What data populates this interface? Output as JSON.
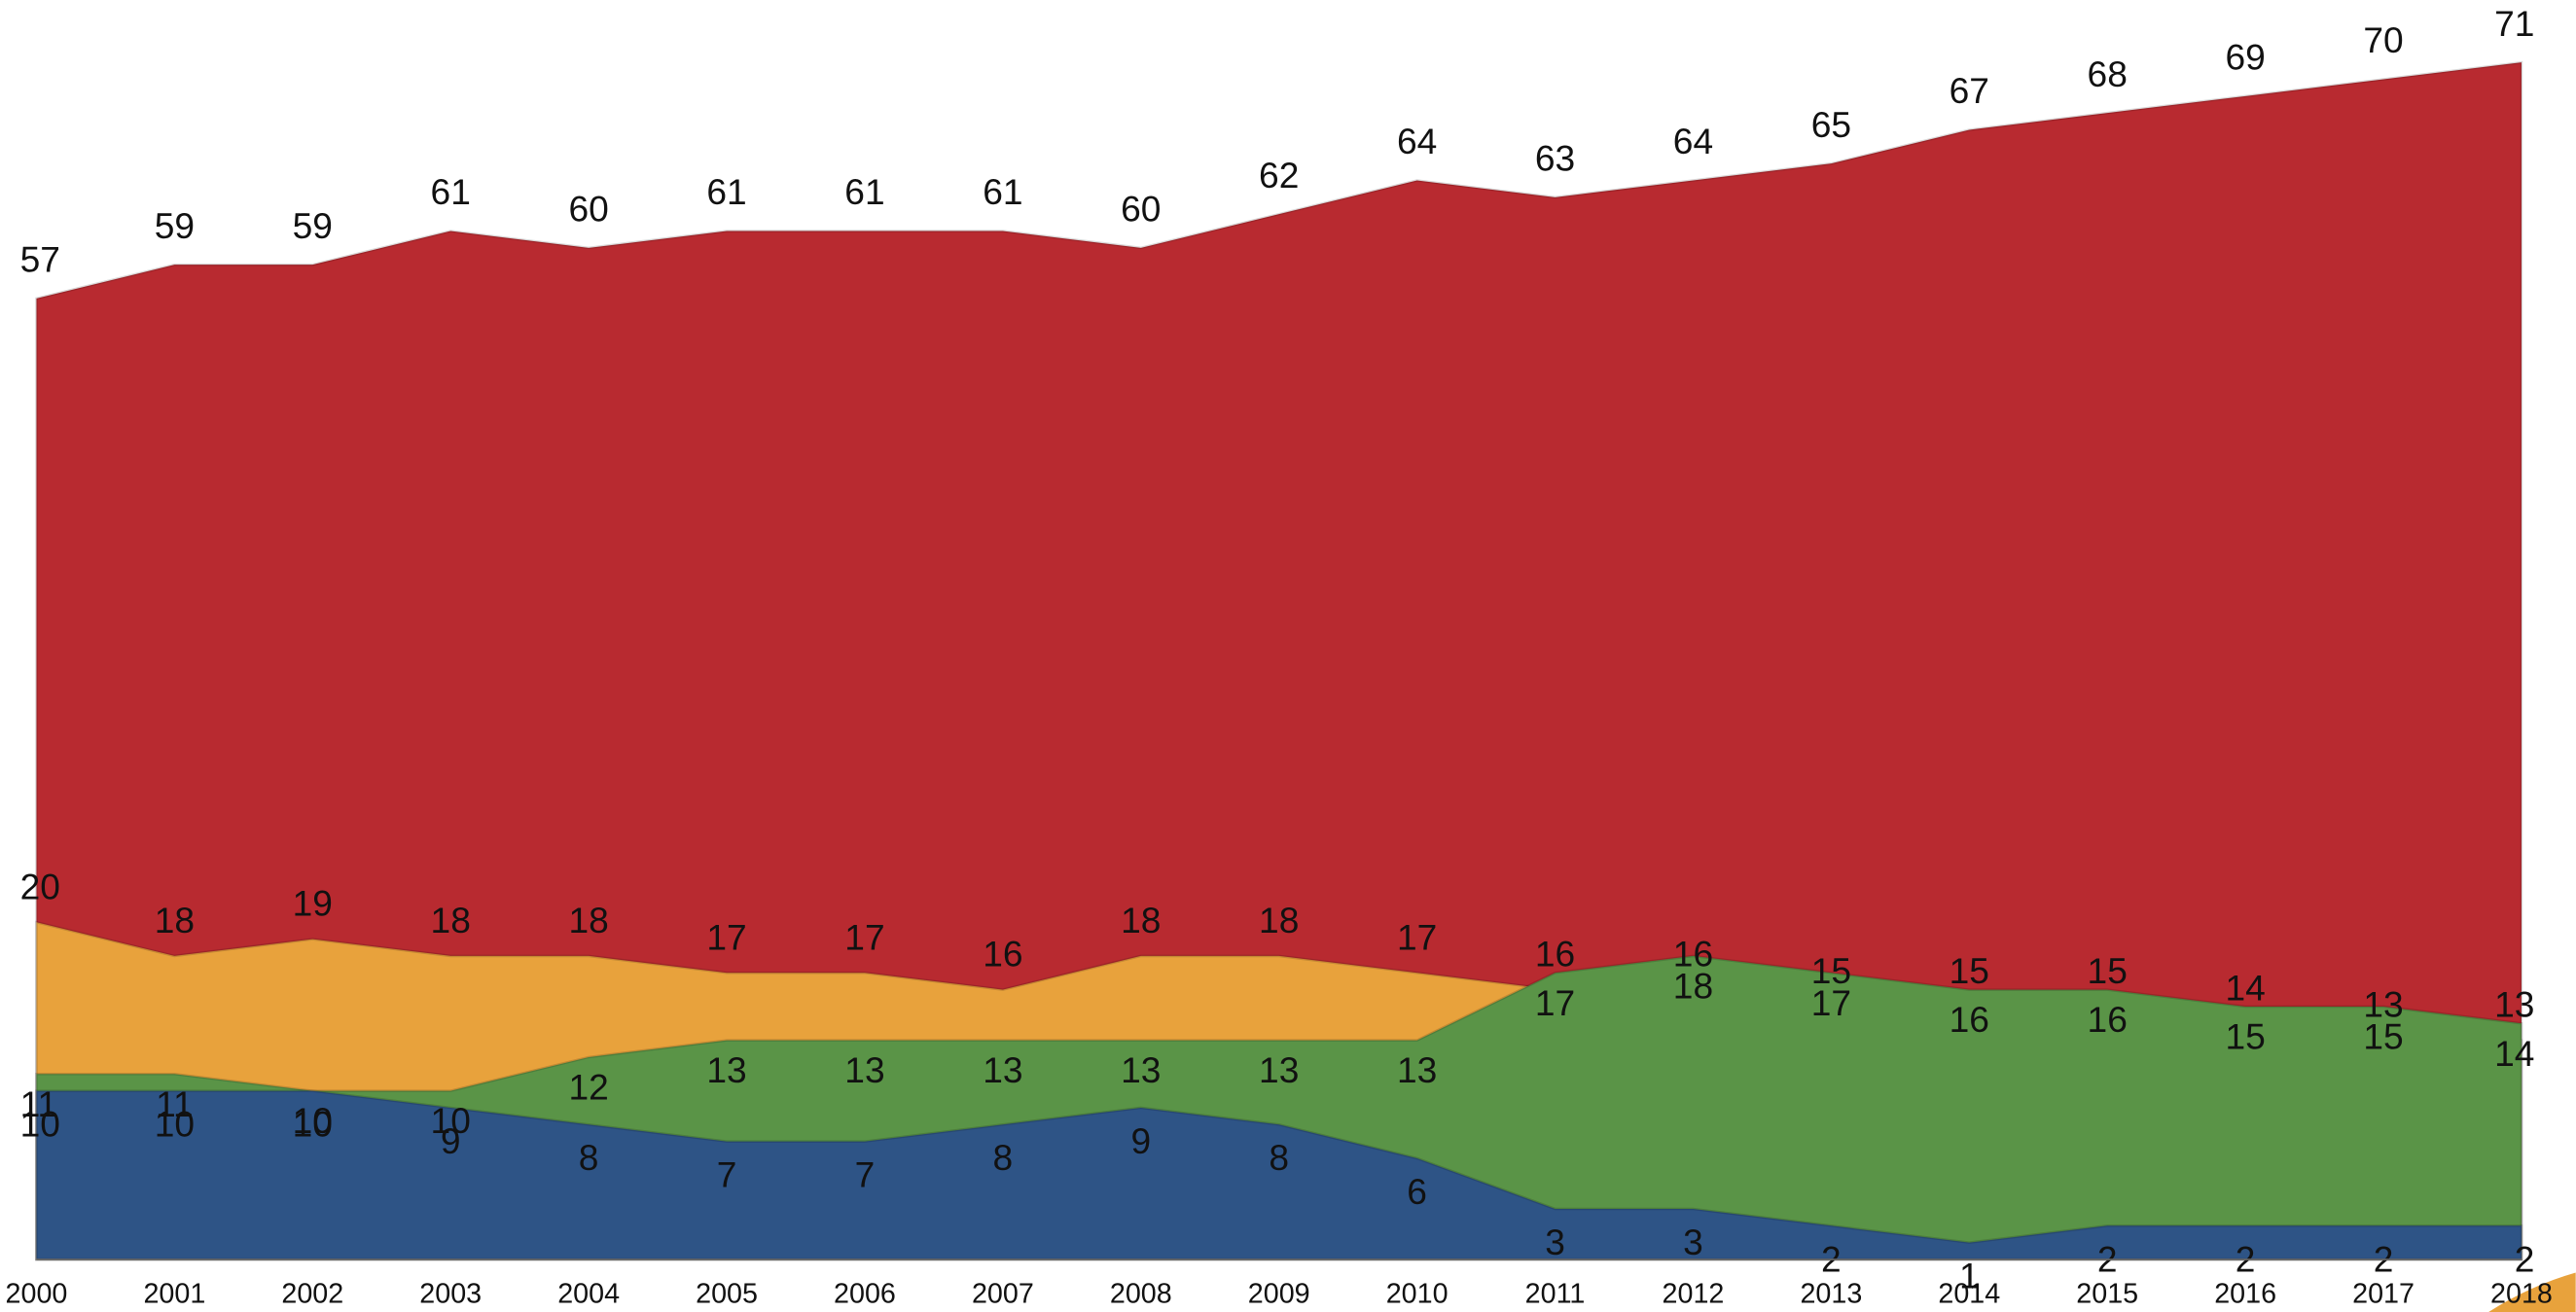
{
  "chart_data": {
    "type": "area",
    "x": [
      "2000",
      "2001",
      "2002",
      "2003",
      "2004",
      "2005",
      "2006",
      "2007",
      "2008",
      "2009",
      "2010",
      "2011",
      "2012",
      "2013",
      "2014",
      "2015",
      "2016",
      "2017",
      "2018"
    ],
    "series": [
      {
        "color": "#b82a30",
        "values": [
          57,
          59,
          59,
          61,
          60,
          61,
          61,
          61,
          60,
          62,
          64,
          63,
          64,
          65,
          67,
          68,
          69,
          70,
          71
        ]
      },
      {
        "color": "#e8a23c",
        "values": [
          20,
          18,
          19,
          18,
          18,
          17,
          17,
          16,
          18,
          18,
          17,
          16,
          16,
          15,
          15,
          15,
          14,
          13,
          13
        ]
      },
      {
        "color": "#5a9447",
        "values": [
          11,
          11,
          10,
          10,
          12,
          13,
          13,
          13,
          13,
          13,
          13,
          17,
          18,
          17,
          16,
          16,
          15,
          15,
          14
        ]
      },
      {
        "color": "#2e5486",
        "values": [
          10,
          10,
          10,
          9,
          8,
          7,
          7,
          8,
          9,
          8,
          6,
          3,
          3,
          2,
          1,
          2,
          2,
          2,
          2
        ]
      }
    ],
    "ylim": [
      0,
      71
    ]
  }
}
